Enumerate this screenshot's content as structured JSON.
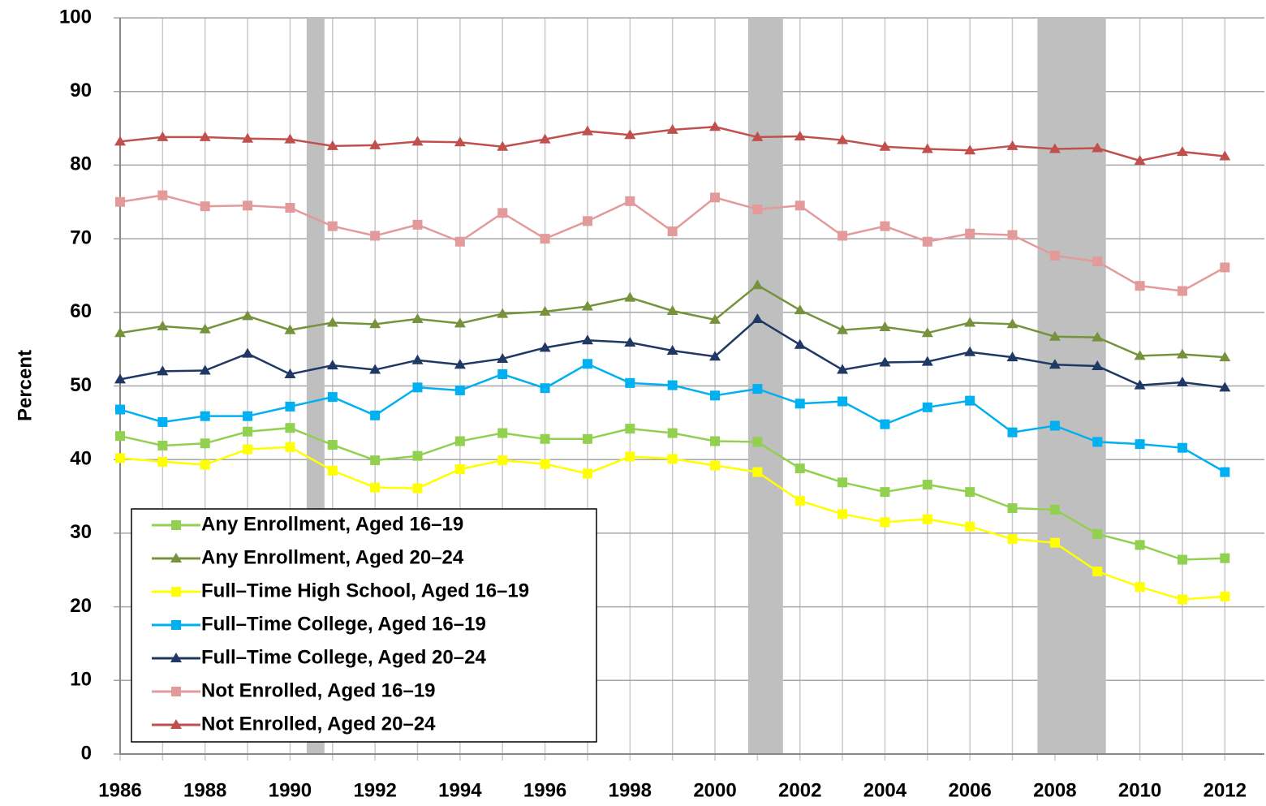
{
  "chart_data": {
    "type": "line",
    "y_label": "Percent",
    "x": [
      1986,
      1987,
      1988,
      1989,
      1990,
      1991,
      1992,
      1993,
      1994,
      1995,
      1996,
      1997,
      1998,
      1999,
      2000,
      2001,
      2002,
      2003,
      2004,
      2005,
      2006,
      2007,
      2008,
      2009,
      2010,
      2011,
      2012
    ],
    "xlim": [
      1986,
      2012.93
    ],
    "xticks": [
      1986,
      1988,
      1990,
      1992,
      1994,
      1996,
      1998,
      2000,
      2002,
      2004,
      2006,
      2008,
      2010,
      2012
    ],
    "ylim": [
      0,
      100
    ],
    "yticks": [
      0,
      10,
      20,
      30,
      40,
      50,
      60,
      70,
      80,
      90,
      100
    ],
    "grid": true,
    "recessions": [
      [
        1990.39,
        1990.81
      ],
      [
        2000.78,
        2001.6
      ],
      [
        2007.59,
        2009.2
      ]
    ],
    "recession_color": "#bfbfbf",
    "legend": "lower left",
    "series": [
      {
        "name": "Any Enrollment, Aged 16–19",
        "color": "#92d050",
        "marker": "square",
        "values": [
          43.2,
          41.9,
          42.2,
          43.8,
          44.3,
          42.0,
          39.9,
          40.5,
          42.5,
          43.6,
          42.8,
          42.8,
          44.2,
          43.6,
          42.5,
          42.4,
          38.8,
          36.9,
          35.6,
          36.6,
          35.6,
          33.4,
          33.2,
          29.9,
          28.4,
          26.4,
          26.6
        ]
      },
      {
        "name": "Any Enrollment, Aged 20–24",
        "color": "#76923c",
        "marker": "triangle",
        "values": [
          57.2,
          58.1,
          57.7,
          59.5,
          57.6,
          58.6,
          58.4,
          59.1,
          58.5,
          59.8,
          60.1,
          60.8,
          62.0,
          60.2,
          59.0,
          63.7,
          60.3,
          57.6,
          58.0,
          57.2,
          58.6,
          58.4,
          56.7,
          56.6,
          54.1,
          54.3,
          53.9
        ]
      },
      {
        "name": "Full–Time High School, Aged 16–19",
        "color": "#ffff00",
        "marker": "square",
        "values": [
          40.2,
          39.7,
          39.3,
          41.4,
          41.7,
          38.5,
          36.2,
          36.1,
          38.7,
          39.9,
          39.4,
          38.1,
          40.4,
          40.1,
          39.2,
          38.3,
          34.4,
          32.6,
          31.5,
          31.9,
          30.9,
          29.2,
          28.7,
          24.8,
          22.7,
          21.0,
          21.4
        ]
      },
      {
        "name": "Full–Time College, Aged 16–19",
        "color": "#00b0f0",
        "marker": "square",
        "values": [
          46.8,
          45.1,
          45.9,
          45.9,
          47.2,
          48.5,
          46.0,
          49.8,
          49.4,
          51.6,
          49.7,
          53.0,
          50.4,
          50.1,
          48.7,
          49.6,
          47.6,
          47.9,
          44.8,
          47.1,
          48.0,
          43.7,
          44.6,
          42.4,
          42.1,
          41.6,
          38.3
        ]
      },
      {
        "name": "Full–Time College, Aged 20–24",
        "color": "#1f3864",
        "marker": "triangle",
        "values": [
          50.9,
          52.0,
          52.1,
          54.4,
          51.6,
          52.8,
          52.2,
          53.5,
          52.9,
          53.7,
          55.2,
          56.2,
          55.9,
          54.8,
          54.0,
          59.1,
          55.6,
          52.2,
          53.2,
          53.3,
          54.6,
          53.9,
          52.9,
          52.7,
          50.1,
          50.5,
          49.8
        ]
      },
      {
        "name": "Not Enrolled, Aged 16–19",
        "color": "#e39a9a",
        "marker": "square",
        "values": [
          75.0,
          75.9,
          74.4,
          74.5,
          74.2,
          71.7,
          70.4,
          71.9,
          69.6,
          73.5,
          70.0,
          72.4,
          75.1,
          71.0,
          75.6,
          74.0,
          74.5,
          70.4,
          71.7,
          69.6,
          70.7,
          70.5,
          67.7,
          66.9,
          63.6,
          62.9,
          66.1
        ]
      },
      {
        "name": "Not Enrolled, Aged 20–24",
        "color": "#c0504d",
        "marker": "triangle",
        "values": [
          83.2,
          83.8,
          83.8,
          83.6,
          83.5,
          82.6,
          82.7,
          83.2,
          83.1,
          82.5,
          83.5,
          84.6,
          84.1,
          84.8,
          85.2,
          83.8,
          83.9,
          83.4,
          82.5,
          82.2,
          82.0,
          82.6,
          82.2,
          82.3,
          80.6,
          81.8,
          81.2
        ]
      }
    ]
  }
}
